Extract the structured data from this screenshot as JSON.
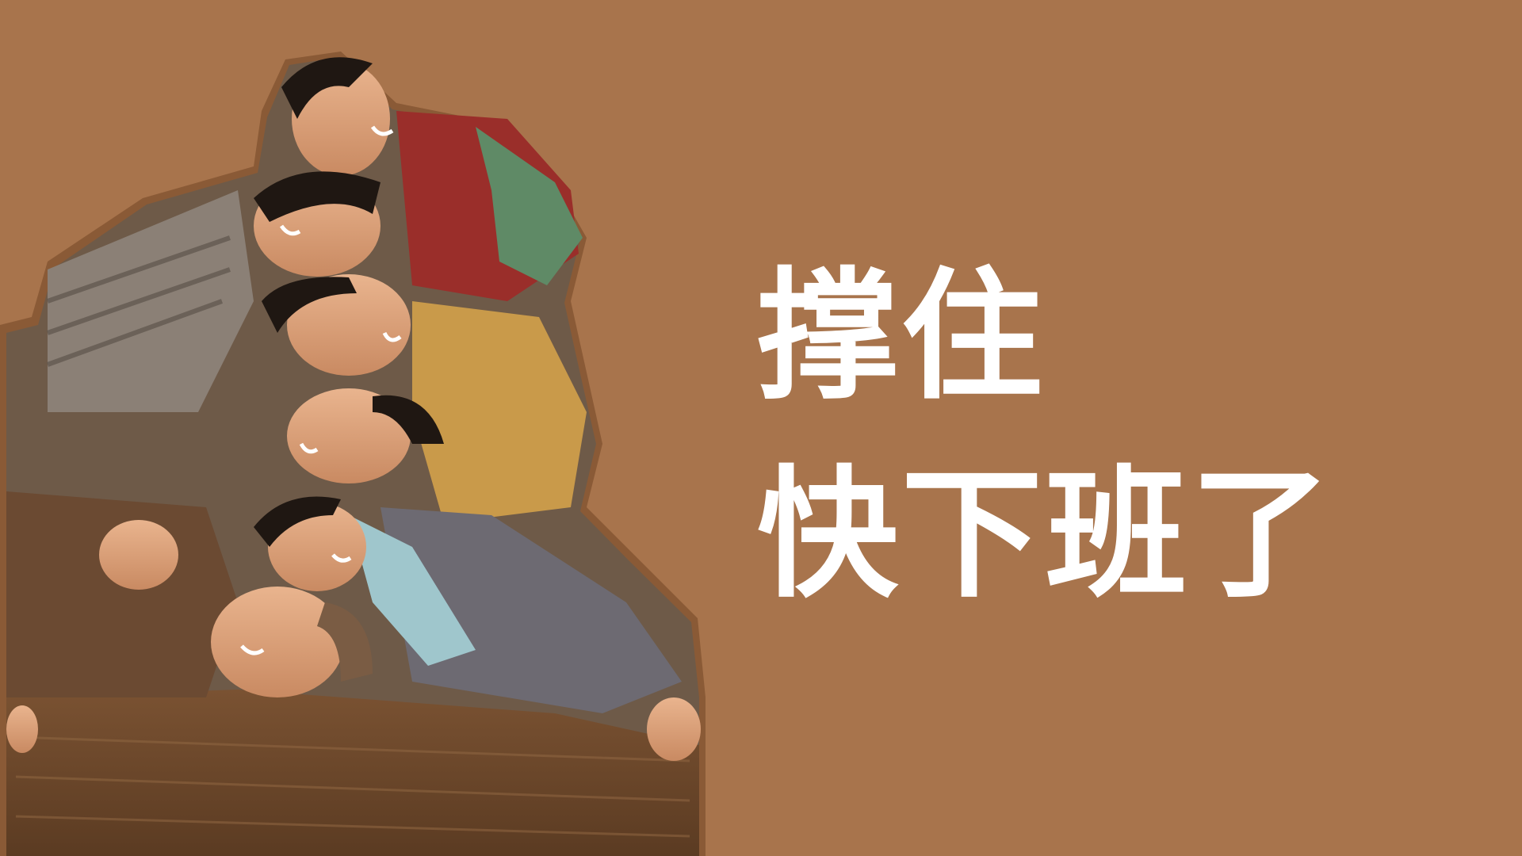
{
  "background_color": "#a8744c",
  "photo": {
    "description_icon": "group-photo-cutout",
    "outline_color": "#8a5a36"
  },
  "headline": {
    "line1": "撑住",
    "line2": "快下班了"
  }
}
